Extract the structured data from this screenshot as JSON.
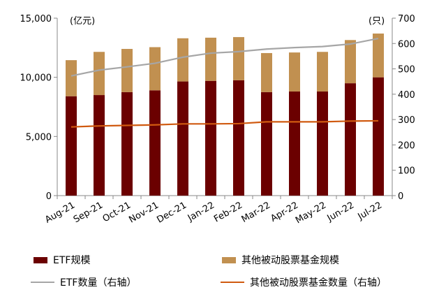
{
  "chart_data": {
    "type": "bar",
    "stacked": true,
    "categories": [
      "Aug-21",
      "Sep-21",
      "Oct-21",
      "Nov-21",
      "Dec-21",
      "Jan-22",
      "Feb-22",
      "Mar-22",
      "Apr-22",
      "May-22",
      "Jun-22",
      "Jul-22"
    ],
    "series": [
      {
        "name": "ETF规模",
        "type": "bar",
        "axis": "left",
        "color": "#6b0000",
        "values": [
          8400,
          8500,
          8750,
          8900,
          9650,
          9700,
          9750,
          8750,
          8800,
          8800,
          9500,
          10000
        ]
      },
      {
        "name": "其他被动股票基金规模",
        "type": "bar",
        "axis": "left",
        "color": "#c19050",
        "values": [
          3050,
          3650,
          3650,
          3650,
          3650,
          3650,
          3650,
          3300,
          3300,
          3350,
          3650,
          3700
        ]
      },
      {
        "name": "ETF数量（右轴）",
        "type": "line",
        "axis": "right",
        "color": "#a6a6a6",
        "values": [
          472,
          495,
          508,
          522,
          546,
          562,
          568,
          578,
          584,
          588,
          598,
          620
        ]
      },
      {
        "name": "其他被动股票基金数量（右轴）",
        "type": "line",
        "axis": "right",
        "color": "#d05a10",
        "values": [
          271,
          275,
          277,
          279,
          283,
          283,
          284,
          291,
          291,
          291,
          294,
          295
        ]
      }
    ],
    "y_left": {
      "unit": "(亿元)",
      "range": [
        0,
        15000
      ],
      "ticks": [
        "0",
        "5,000",
        "10,000",
        "15,000"
      ],
      "tick_values": [
        0,
        5000,
        10000,
        15000
      ]
    },
    "y_right": {
      "unit": "(只)",
      "range": [
        0,
        700
      ],
      "ticks": [
        "0",
        "100",
        "200",
        "300",
        "400",
        "500",
        "600",
        "700"
      ],
      "tick_values": [
        0,
        100,
        200,
        300,
        400,
        500,
        600,
        700
      ]
    },
    "grid": false,
    "legend_position": "bottom"
  }
}
